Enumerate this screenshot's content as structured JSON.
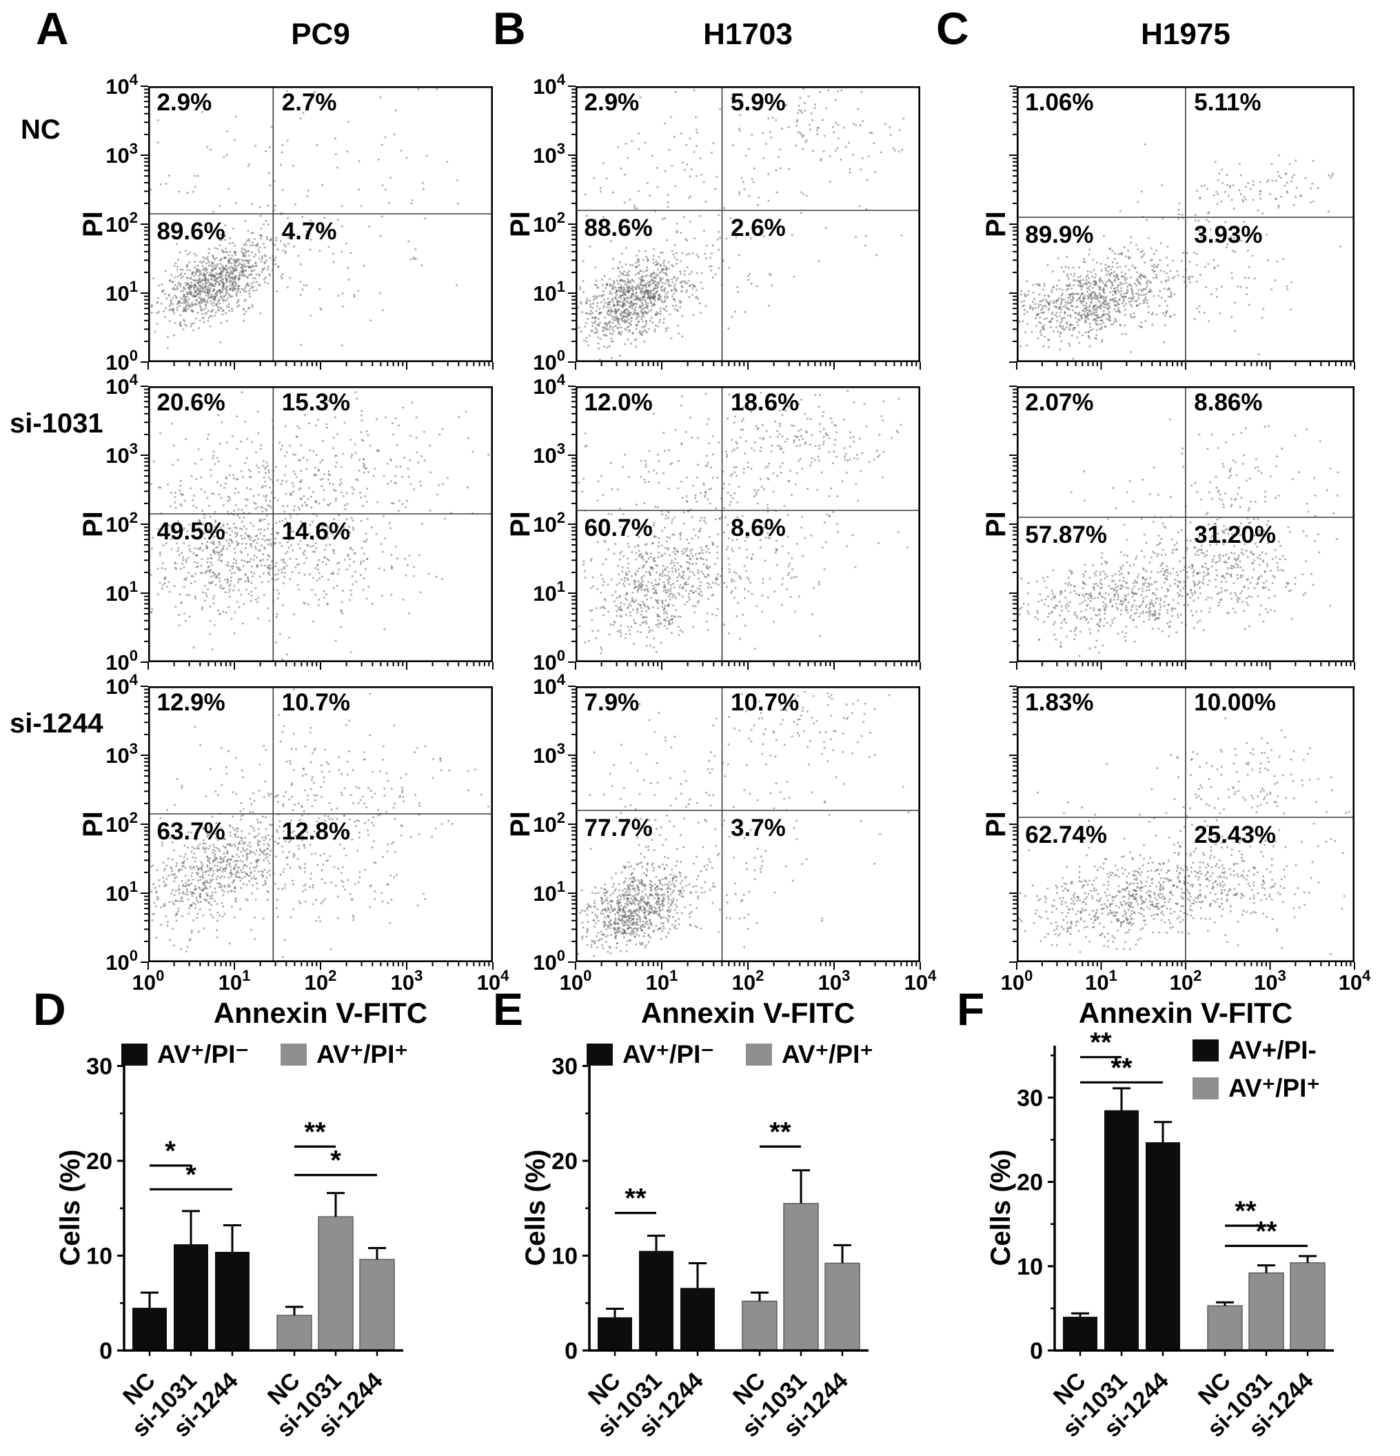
{
  "chart_data": [
    {
      "type": "scatter",
      "panel": "A",
      "cell_line": "PC9",
      "condition": "NC",
      "xlabel": "Annexin V-FITC",
      "ylabel": "PI",
      "xlim_log10": [
        0,
        4
      ],
      "ylim_log10": [
        0,
        4
      ],
      "gate_x_log10": 1.45,
      "gate_y_log10": 2.15,
      "quadrants": {
        "ul": "2.9%",
        "ur": "2.7%",
        "ll": "89.6%",
        "lr": "4.7%"
      },
      "show_y_ticklabels": true,
      "show_x_ticklabels": false,
      "point_color": "#5a5a5a",
      "clusters": [
        {
          "x": 0.78,
          "y": 1.15,
          "sx": 0.34,
          "sy": 0.3,
          "rho": 0.55,
          "n": 880
        },
        {
          "x": 1.1,
          "y": 2.0,
          "sx": 0.9,
          "sy": 0.9,
          "n": 110
        },
        {
          "x": 2.3,
          "y": 2.6,
          "sx": 0.8,
          "sy": 0.7,
          "n": 60
        },
        {
          "x": 1.9,
          "y": 1.3,
          "sx": 0.6,
          "sy": 0.4,
          "n": 50
        }
      ]
    },
    {
      "type": "scatter",
      "panel": "A",
      "cell_line": "PC9",
      "condition": "si-1031",
      "xlabel": "Annexin V-FITC",
      "ylabel": "PI",
      "xlim_log10": [
        0,
        4
      ],
      "ylim_log10": [
        0,
        4
      ],
      "gate_x_log10": 1.45,
      "gate_y_log10": 2.15,
      "quadrants": {
        "ul": "20.6%",
        "ur": "15.3%",
        "ll": "49.5%",
        "lr": "14.6%"
      },
      "show_y_ticklabels": true,
      "show_x_ticklabels": false,
      "point_color": "#5a5a5a",
      "clusters": [
        {
          "x": 0.85,
          "y": 1.45,
          "sx": 0.45,
          "sy": 0.45,
          "rho": 0.3,
          "n": 420
        },
        {
          "x": 1.2,
          "y": 2.4,
          "sx": 0.7,
          "sy": 0.6,
          "n": 260
        },
        {
          "x": 2.1,
          "y": 2.3,
          "sx": 0.75,
          "sy": 0.7,
          "n": 230
        },
        {
          "x": 1.9,
          "y": 1.3,
          "sx": 0.6,
          "sy": 0.45,
          "n": 150
        },
        {
          "x": 2.9,
          "y": 3.2,
          "sx": 0.55,
          "sy": 0.45,
          "n": 60
        }
      ]
    },
    {
      "type": "scatter",
      "panel": "A",
      "cell_line": "PC9",
      "condition": "si-1244",
      "xlabel": "Annexin V-FITC",
      "ylabel": "PI",
      "xlim_log10": [
        0,
        4
      ],
      "ylim_log10": [
        0,
        4
      ],
      "gate_x_log10": 1.45,
      "gate_y_log10": 2.15,
      "quadrants": {
        "ul": "12.9%",
        "ur": "10.7%",
        "ll": "63.7%",
        "lr": "12.8%"
      },
      "show_y_ticklabels": true,
      "show_x_ticklabels": true,
      "point_color": "#5a5a5a",
      "clusters": [
        {
          "x": 0.8,
          "y": 1.3,
          "sx": 0.42,
          "sy": 0.38,
          "rho": 0.5,
          "n": 600
        },
        {
          "x": 1.6,
          "y": 1.9,
          "sx": 0.8,
          "sy": 0.7,
          "n": 220
        },
        {
          "x": 2.4,
          "y": 2.5,
          "sx": 0.7,
          "sy": 0.6,
          "n": 130
        },
        {
          "x": 2.2,
          "y": 1.2,
          "sx": 0.5,
          "sy": 0.35,
          "n": 60
        }
      ]
    },
    {
      "type": "scatter",
      "panel": "B",
      "cell_line": "H1703",
      "condition": "NC",
      "xlabel": "Annexin V-FITC",
      "ylabel": "PI",
      "xlim_log10": [
        0,
        4
      ],
      "ylim_log10": [
        0,
        4
      ],
      "gate_x_log10": 1.7,
      "gate_y_log10": 2.2,
      "quadrants": {
        "ul": "2.9%",
        "ur": "5.9%",
        "ll": "88.6%",
        "lr": "2.6%"
      },
      "show_y_ticklabels": true,
      "show_x_ticklabels": false,
      "point_color": "#5a5a5a",
      "clusters": [
        {
          "x": 0.68,
          "y": 0.9,
          "sx": 0.33,
          "sy": 0.3,
          "rho": 0.45,
          "n": 860
        },
        {
          "x": 0.95,
          "y": 2.5,
          "sx": 0.5,
          "sy": 0.8,
          "n": 90
        },
        {
          "x": 2.9,
          "y": 3.35,
          "sx": 0.55,
          "sy": 0.35,
          "n": 110
        },
        {
          "x": 2.0,
          "y": 2.4,
          "sx": 0.8,
          "sy": 0.8,
          "n": 70
        },
        {
          "x": 1.6,
          "y": 1.2,
          "sx": 0.5,
          "sy": 0.4,
          "n": 40
        }
      ]
    },
    {
      "type": "scatter",
      "panel": "B",
      "cell_line": "H1703",
      "condition": "si-1031",
      "xlabel": "Annexin V-FITC",
      "ylabel": "PI",
      "xlim_log10": [
        0,
        4
      ],
      "ylim_log10": [
        0,
        4
      ],
      "gate_x_log10": 1.7,
      "gate_y_log10": 2.2,
      "quadrants": {
        "ul": "12.0%",
        "ur": "18.6%",
        "ll": "60.7%",
        "lr": "8.6%"
      },
      "show_y_ticklabels": true,
      "show_x_ticklabels": false,
      "point_color": "#5a5a5a",
      "clusters": [
        {
          "x": 0.95,
          "y": 1.1,
          "sx": 0.42,
          "sy": 0.45,
          "rho": 0.35,
          "n": 560
        },
        {
          "x": 1.1,
          "y": 2.4,
          "sx": 0.55,
          "sy": 0.6,
          "n": 150
        },
        {
          "x": 2.6,
          "y": 3.2,
          "sx": 0.6,
          "sy": 0.4,
          "n": 170
        },
        {
          "x": 2.2,
          "y": 2.3,
          "sx": 0.7,
          "sy": 0.6,
          "n": 120
        },
        {
          "x": 1.9,
          "y": 1.2,
          "sx": 0.55,
          "sy": 0.4,
          "n": 90
        }
      ]
    },
    {
      "type": "scatter",
      "panel": "B",
      "cell_line": "H1703",
      "condition": "si-1244",
      "xlabel": "Annexin V-FITC",
      "ylabel": "PI",
      "xlim_log10": [
        0,
        4
      ],
      "ylim_log10": [
        0,
        4
      ],
      "gate_x_log10": 1.7,
      "gate_y_log10": 2.2,
      "quadrants": {
        "ul": "7.9%",
        "ur": "10.7%",
        "ll": "77.7%",
        "lr": "3.7%"
      },
      "show_y_ticklabels": true,
      "show_x_ticklabels": true,
      "point_color": "#5a5a5a",
      "clusters": [
        {
          "x": 0.72,
          "y": 0.78,
          "sx": 0.32,
          "sy": 0.3,
          "rho": 0.35,
          "n": 780
        },
        {
          "x": 0.95,
          "y": 2.3,
          "sx": 0.5,
          "sy": 0.7,
          "n": 80
        },
        {
          "x": 2.7,
          "y": 3.5,
          "sx": 0.5,
          "sy": 0.3,
          "n": 100
        },
        {
          "x": 2.1,
          "y": 2.1,
          "sx": 0.8,
          "sy": 0.7,
          "n": 80
        },
        {
          "x": 1.7,
          "y": 1.0,
          "sx": 0.5,
          "sy": 0.35,
          "n": 40
        }
      ]
    },
    {
      "type": "scatter",
      "panel": "C",
      "cell_line": "H1975",
      "condition": "NC",
      "xlabel": "Annexin V-FITC",
      "ylabel": "PI",
      "xlim_log10": [
        0,
        4
      ],
      "ylim_log10": [
        0,
        4
      ],
      "gate_x_log10": 2.0,
      "gate_y_log10": 2.1,
      "quadrants": {
        "ul": "1.06%",
        "ur": "5.11%",
        "ll": "89.9%",
        "lr": "3.93%"
      },
      "show_y_ticklabels": false,
      "show_x_ticklabels": false,
      "point_color": "#5a5a5a",
      "clusters": [
        {
          "x": 0.95,
          "y": 0.9,
          "sx": 0.5,
          "sy": 0.32,
          "rho": 0.45,
          "n": 870
        },
        {
          "x": 2.9,
          "y": 2.55,
          "sx": 0.45,
          "sy": 0.18,
          "n": 80
        },
        {
          "x": 2.2,
          "y": 1.9,
          "sx": 0.6,
          "sy": 0.45,
          "n": 60
        },
        {
          "x": 2.5,
          "y": 1.2,
          "sx": 0.5,
          "sy": 0.4,
          "n": 50
        }
      ]
    },
    {
      "type": "scatter",
      "panel": "C",
      "cell_line": "H1975",
      "condition": "si-1031",
      "xlabel": "Annexin V-FITC",
      "ylabel": "PI",
      "xlim_log10": [
        0,
        4
      ],
      "ylim_log10": [
        0,
        4
      ],
      "gate_x_log10": 2.0,
      "gate_y_log10": 2.1,
      "quadrants": {
        "ul": "2.07%",
        "ur": "8.86%",
        "ll": "57.87%",
        "lr": "31.20%"
      },
      "show_y_ticklabels": false,
      "show_x_ticklabels": false,
      "point_color": "#5a5a5a",
      "clusters": [
        {
          "x": 1.25,
          "y": 0.95,
          "sx": 0.6,
          "sy": 0.3,
          "rho": 0.35,
          "n": 520
        },
        {
          "x": 2.5,
          "y": 1.35,
          "sx": 0.5,
          "sy": 0.35,
          "n": 300
        },
        {
          "x": 2.8,
          "y": 2.7,
          "sx": 0.5,
          "sy": 0.45,
          "n": 90
        },
        {
          "x": 1.8,
          "y": 1.9,
          "sx": 0.7,
          "sy": 0.5,
          "n": 70
        }
      ]
    },
    {
      "type": "scatter",
      "panel": "C",
      "cell_line": "H1975",
      "condition": "si-1244",
      "xlabel": "Annexin V-FITC",
      "ylabel": "PI",
      "xlim_log10": [
        0,
        4
      ],
      "ylim_log10": [
        0,
        4
      ],
      "gate_x_log10": 2.0,
      "gate_y_log10": 2.1,
      "quadrants": {
        "ul": "1.83%",
        "ur": "10.00%",
        "ll": "62.74%",
        "lr": "25.43%"
      },
      "show_y_ticklabels": false,
      "show_x_ticklabels": true,
      "point_color": "#5a5a5a",
      "clusters": [
        {
          "x": 1.3,
          "y": 0.9,
          "sx": 0.6,
          "sy": 0.3,
          "rho": 0.35,
          "n": 560
        },
        {
          "x": 2.5,
          "y": 1.2,
          "sx": 0.5,
          "sy": 0.35,
          "n": 260
        },
        {
          "x": 2.75,
          "y": 2.6,
          "sx": 0.42,
          "sy": 0.35,
          "n": 110
        },
        {
          "x": 1.9,
          "y": 1.9,
          "sx": 0.8,
          "sy": 0.6,
          "n": 60
        }
      ]
    },
    {
      "type": "bar",
      "panel": "D",
      "cell_line": "PC9",
      "ylabel": "Cells (%)",
      "ylim": [
        0,
        30
      ],
      "yticks": [
        0,
        10,
        20,
        30
      ],
      "yscale": 32,
      "categories": [
        "NC",
        "si-1031",
        "si-1244"
      ],
      "series": [
        {
          "name": "AV⁺/PI⁻",
          "color": "#0d0d0d",
          "values": [
            4.5,
            11.2,
            10.4
          ],
          "errors": [
            1.6,
            3.5,
            2.8
          ]
        },
        {
          "name": "AV⁺/PI⁺",
          "color": "#8f8f8f",
          "values": [
            3.7,
            14.1,
            9.6
          ],
          "errors": [
            0.9,
            2.5,
            1.2
          ]
        }
      ],
      "significance": [
        {
          "series": 0,
          "from": 0,
          "to": 1,
          "label": "*",
          "y": 19.5
        },
        {
          "series": 0,
          "from": 0,
          "to": 2,
          "label": "*",
          "y": 17
        },
        {
          "series": 1,
          "from": 0,
          "to": 1,
          "label": "**",
          "y": 21.5
        },
        {
          "series": 1,
          "from": 0,
          "to": 2,
          "label": "*",
          "y": 18.5
        }
      ]
    },
    {
      "type": "bar",
      "panel": "E",
      "cell_line": "H1703",
      "ylabel": "Cells (%)",
      "ylim": [
        0,
        30
      ],
      "yticks": [
        0,
        10,
        20,
        30
      ],
      "yscale": 32,
      "categories": [
        "NC",
        "si-1031",
        "si-1244"
      ],
      "series": [
        {
          "name": "AV⁺/PI⁻",
          "color": "#0d0d0d",
          "values": [
            3.5,
            10.5,
            6.6
          ],
          "errors": [
            0.9,
            1.6,
            2.6
          ]
        },
        {
          "name": "AV⁺/PI⁺",
          "color": "#8f8f8f",
          "values": [
            5.2,
            15.5,
            9.2
          ],
          "errors": [
            0.9,
            3.5,
            1.9
          ]
        }
      ],
      "significance": [
        {
          "series": 0,
          "from": 0,
          "to": 1,
          "label": "**",
          "y": 14.5
        },
        {
          "series": 1,
          "from": 0,
          "to": 1,
          "label": "**",
          "y": 21.5
        }
      ]
    },
    {
      "type": "bar",
      "panel": "F",
      "cell_line": "H1975",
      "ylabel": "Cells (%)",
      "ylim": [
        0,
        30
      ],
      "yticks": [
        0,
        10,
        20,
        30
      ],
      "yscale": 36,
      "categories": [
        "NC",
        "si-1031",
        "si-1244"
      ],
      "series": [
        {
          "name": "AV+/PI-",
          "color": "#0d0d0d",
          "values": [
            4.0,
            28.5,
            24.7
          ],
          "errors": [
            0.4,
            2.6,
            2.4
          ]
        },
        {
          "name": "AV⁺/PI⁺",
          "color": "#8f8f8f",
          "values": [
            5.3,
            9.2,
            10.4
          ],
          "errors": [
            0.4,
            0.9,
            0.8
          ]
        }
      ],
      "significance": [
        {
          "series": 0,
          "from": 0,
          "to": 1,
          "label": "**",
          "y": 34.8
        },
        {
          "series": 0,
          "from": 0,
          "to": 2,
          "label": "**",
          "y": 31.8
        },
        {
          "series": 1,
          "from": 0,
          "to": 1,
          "label": "**",
          "y": 14.8
        },
        {
          "series": 1,
          "from": 0,
          "to": 2,
          "label": "**",
          "y": 12.4
        }
      ]
    }
  ]
}
